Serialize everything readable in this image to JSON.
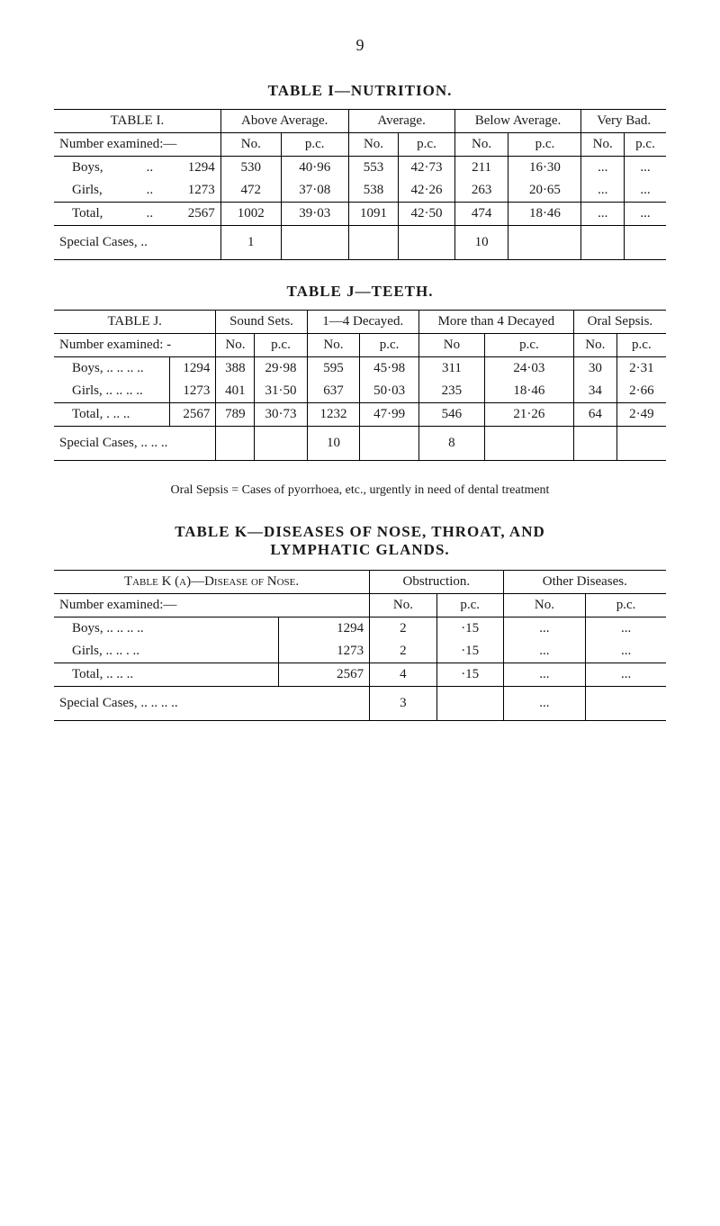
{
  "page_number": "9",
  "table1": {
    "title": "TABLE I—NUTRITION.",
    "corner_label": "TABLE I.",
    "col_groups": [
      "Above Average.",
      "Average.",
      "Below Average.",
      "Very Bad."
    ],
    "sub_cols": [
      "No.",
      "p.c.",
      "No.",
      "p.c.",
      "No.",
      "p.c.",
      "No.",
      "p.c."
    ],
    "section_label": "Number examined:—",
    "rows": [
      {
        "label": "Boys,",
        "dots": "..",
        "n": "1294",
        "cells": [
          "530",
          "40·96",
          "553",
          "42·73",
          "211",
          "16·30",
          "...",
          "..."
        ]
      },
      {
        "label": "Girls,",
        "dots": "..",
        "n": "1273",
        "cells": [
          "472",
          "37·08",
          "538",
          "42·26",
          "263",
          "20·65",
          "...",
          "..."
        ]
      }
    ],
    "total": {
      "label": "Total,",
      "dots": "..",
      "n": "2567",
      "cells": [
        "1002",
        "39·03",
        "1091",
        "42·50",
        "474",
        "18·46",
        "...",
        "..."
      ]
    },
    "special": {
      "label": "Special Cases, ..",
      "cells": [
        "1",
        "",
        "",
        "",
        "10",
        "",
        "",
        ""
      ]
    }
  },
  "table2": {
    "title": "TABLE J—TEETH.",
    "corner_label": "TABLE J.",
    "col_groups": [
      "Sound Sets.",
      "1—4 Decayed.",
      "More than 4 Decayed",
      "Oral Sepsis."
    ],
    "sub_cols": [
      "No.",
      "p.c.",
      "No.",
      "p.c.",
      "No",
      "p.c.",
      "No.",
      "p.c."
    ],
    "section_label": "Number examined: -",
    "rows": [
      {
        "label": "Boys, ..  ..  ..  ..",
        "n": "1294",
        "cells": [
          "388",
          "29·98",
          "595",
          "45·98",
          "311",
          "24·03",
          "30",
          "2·31"
        ]
      },
      {
        "label": "Girls, ..  ..  ..  ..",
        "n": "1273",
        "cells": [
          "401",
          "31·50",
          "637",
          "50·03",
          "235",
          "18·46",
          "34",
          "2·66"
        ]
      }
    ],
    "total": {
      "label": "Total,     .  ..  ..",
      "n": "2567",
      "cells": [
        "789",
        "30·73",
        "1232",
        "47·99",
        "546",
        "21·26",
        "64",
        "2·49"
      ]
    },
    "special": {
      "label": "Special Cases,   ..  ..  ..",
      "cells": [
        "",
        "",
        "10",
        "",
        "8",
        "",
        "",
        ""
      ]
    },
    "footnote": "Oral Sepsis = Cases of pyorrhoea, etc., urgently in need of dental treatment"
  },
  "table3": {
    "title1": "TABLE K—DISEASES OF NOSE, THROAT, AND",
    "title2": "LYMPHATIC GLANDS.",
    "corner_label_pre": "Table K (a)—",
    "corner_label_caps": "Disease of Nose.",
    "col_groups": [
      "Obstruction.",
      "Other Diseases."
    ],
    "sub_cols": [
      "No.",
      "p.c.",
      "No.",
      "p.c."
    ],
    "section_label": "Number examined:—",
    "rows": [
      {
        "label": "Boys,   ..  ..  ..  ..",
        "n": "1294",
        "cells": [
          "2",
          "·15",
          "...",
          "..."
        ]
      },
      {
        "label": "Girls,   ..  ..  .   ..",
        "n": "1273",
        "cells": [
          "2",
          "·15",
          "...",
          "..."
        ]
      }
    ],
    "total": {
      "label": "Total,   ..  ..  ..",
      "n": "2567",
      "cells": [
        "4",
        "·15",
        "...",
        "..."
      ]
    },
    "special": {
      "label": "Special Cases, ..   ..   ..   ..",
      "cells": [
        "3",
        "",
        "...",
        ""
      ]
    }
  },
  "style": {
    "font_family": "Times New Roman",
    "page_bg": "#ffffff",
    "text_color": "#1a1a1a",
    "border_color": "#000000"
  }
}
